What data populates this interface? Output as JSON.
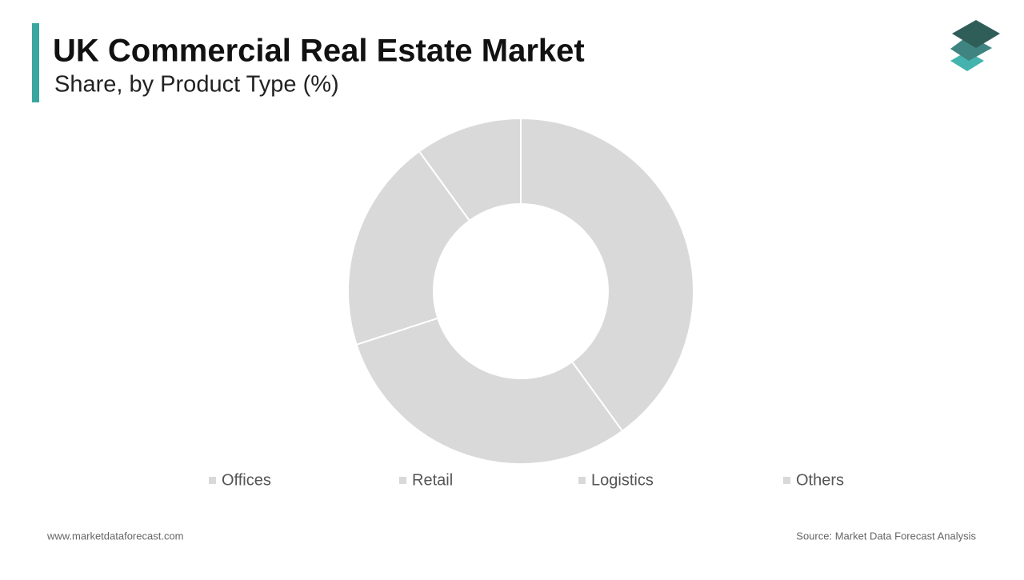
{
  "chart_data": {
    "type": "pie",
    "title": "UK Commercial Real Estate Market",
    "subtitle": "Share, by Product Type (%)",
    "categories": [
      "Offices",
      "Retail",
      "Logistics",
      "Others"
    ],
    "values": [
      40,
      30,
      20,
      10
    ],
    "colors": [
      "#d9d9d9",
      "#d9d9d9",
      "#d9d9d9",
      "#d9d9d9"
    ],
    "legend": "bottom"
  },
  "footer": {
    "website": "www.marketdataforecast.com",
    "source": "Source: Market Data Forecast Analysis"
  }
}
